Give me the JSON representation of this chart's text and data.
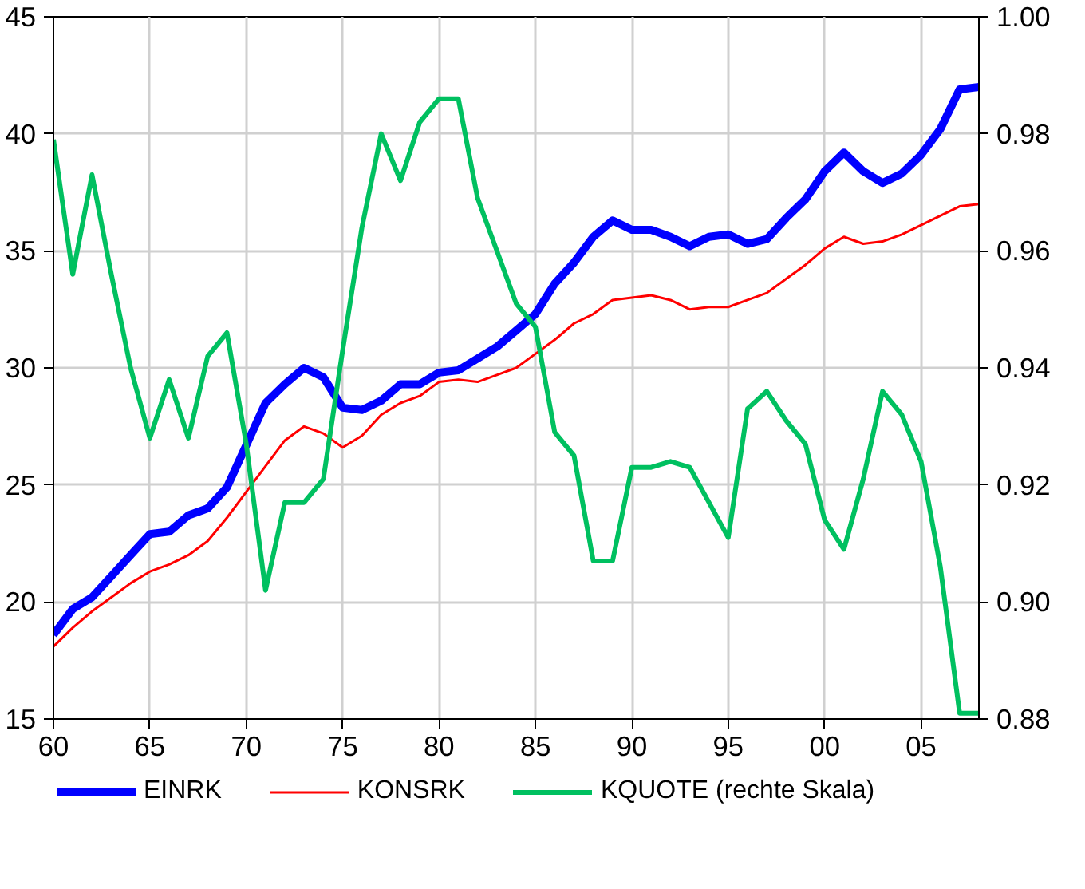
{
  "chart_data": {
    "type": "line",
    "x": [
      1960,
      1961,
      1962,
      1963,
      1964,
      1965,
      1966,
      1967,
      1968,
      1969,
      1970,
      1971,
      1972,
      1973,
      1974,
      1975,
      1976,
      1977,
      1978,
      1979,
      1980,
      1981,
      1982,
      1983,
      1984,
      1985,
      1986,
      1987,
      1988,
      1989,
      1990,
      1991,
      1992,
      1993,
      1994,
      1995,
      1996,
      1997,
      1998,
      1999,
      2000,
      2001,
      2002,
      2003,
      2004,
      2005,
      2006,
      2007,
      2008
    ],
    "series": [
      {
        "name": "EINRK",
        "color": "#0000ff",
        "values": [
          18.6,
          19.7,
          20.2,
          21.1,
          22.0,
          22.9,
          23.0,
          23.7,
          24.0,
          24.9,
          26.7,
          28.5,
          29.3,
          30.0,
          29.6,
          28.3,
          28.2,
          28.6,
          29.3,
          29.3,
          29.8,
          29.9,
          30.4,
          30.9,
          31.6,
          32.3,
          33.6,
          34.5,
          35.6,
          36.3,
          35.9,
          35.9,
          35.6,
          35.2,
          35.6,
          35.7,
          35.3,
          35.5,
          36.4,
          37.2,
          38.4,
          39.2,
          38.4,
          37.9,
          38.3,
          39.1,
          40.2,
          41.9,
          42.0
        ]
      },
      {
        "name": "KONSRK",
        "color": "#ff0000",
        "values": [
          18.1,
          18.9,
          19.6,
          20.2,
          20.8,
          21.3,
          21.6,
          22.0,
          22.6,
          23.6,
          24.7,
          25.8,
          26.9,
          27.5,
          27.2,
          26.6,
          27.1,
          28.0,
          28.5,
          28.8,
          29.4,
          29.5,
          29.4,
          29.7,
          30.0,
          30.6,
          31.2,
          31.9,
          32.3,
          32.9,
          33.0,
          33.1,
          32.9,
          32.5,
          32.6,
          32.6,
          32.9,
          33.2,
          33.8,
          34.4,
          35.1,
          35.6,
          35.3,
          35.4,
          35.7,
          36.1,
          36.5,
          36.9,
          37.0
        ]
      },
      {
        "name": "KQUOTE (rechte Skala)",
        "color": "#00c060",
        "axis": "y2",
        "values": [
          0.979,
          0.956,
          0.973,
          0.956,
          0.94,
          0.928,
          0.938,
          0.928,
          0.942,
          0.946,
          0.927,
          0.902,
          0.917,
          0.917,
          0.921,
          0.943,
          0.964,
          0.98,
          0.972,
          0.982,
          0.986,
          0.986,
          0.969,
          0.96,
          0.951,
          0.947,
          0.929,
          0.925,
          0.907,
          0.907,
          0.923,
          0.923,
          0.924,
          0.923,
          0.917,
          0.911,
          0.933,
          0.936,
          0.931,
          0.927,
          0.914,
          0.909,
          0.921,
          0.936,
          0.932,
          0.924,
          0.906,
          0.881,
          0.881
        ]
      }
    ],
    "xlim": [
      1960,
      2008
    ],
    "xticks": [
      {
        "value": 1960,
        "label": "60"
      },
      {
        "value": 1965,
        "label": "65"
      },
      {
        "value": 1970,
        "label": "70"
      },
      {
        "value": 1975,
        "label": "75"
      },
      {
        "value": 1980,
        "label": "80"
      },
      {
        "value": 1985,
        "label": "85"
      },
      {
        "value": 1990,
        "label": "90"
      },
      {
        "value": 1995,
        "label": "95"
      },
      {
        "value": 2000,
        "label": "00"
      },
      {
        "value": 2005,
        "label": "05"
      }
    ],
    "ylim": [
      15,
      45
    ],
    "yticks": [
      15,
      20,
      25,
      30,
      35,
      40,
      45
    ],
    "y2lim": [
      0.88,
      1.0
    ],
    "y2ticks": [
      {
        "value": 0.88,
        "label": "0.88"
      },
      {
        "value": 0.9,
        "label": "0.90"
      },
      {
        "value": 0.92,
        "label": "0.92"
      },
      {
        "value": 0.94,
        "label": "0.94"
      },
      {
        "value": 0.96,
        "label": "0.96"
      },
      {
        "value": 0.98,
        "label": "0.98"
      },
      {
        "value": 1.0,
        "label": "1.00"
      }
    ],
    "grid": true,
    "legend": "bottom",
    "marker": "none",
    "line_style": "solid"
  }
}
